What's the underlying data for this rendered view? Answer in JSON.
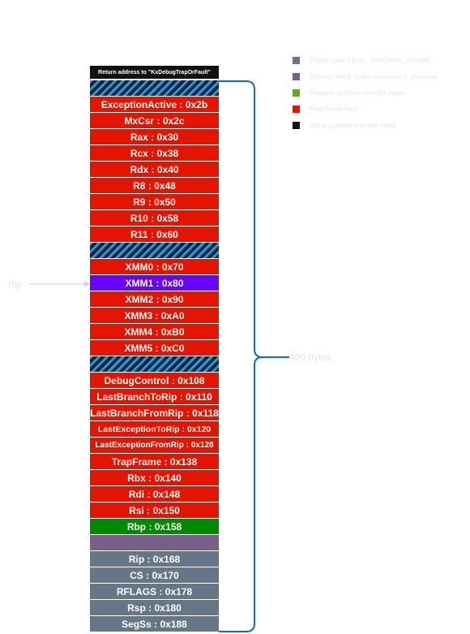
{
  "stack": [
    {
      "label": "Return address to \"KxDebugTrapOrFault\"",
      "kind": "val"
    },
    {
      "label": "",
      "kind": "pad"
    },
    {
      "label": "ExceptionActive : 0x2b",
      "kind": "trap"
    },
    {
      "label": "MxCsr : 0x2c",
      "kind": "trap"
    },
    {
      "label": "Rax : 0x30",
      "kind": "trap"
    },
    {
      "label": "Rcx : 0x38",
      "kind": "trap"
    },
    {
      "label": "Rdx : 0x40",
      "kind": "trap"
    },
    {
      "label": "R8 : 0x48",
      "kind": "trap"
    },
    {
      "label": "R9 : 0x50",
      "kind": "trap"
    },
    {
      "label": "R10 : 0x58",
      "kind": "trap"
    },
    {
      "label": "R11 : 0x60",
      "kind": "trap"
    },
    {
      "label": "",
      "kind": "pad"
    },
    {
      "label": "XMM0 : 0x70",
      "kind": "trap"
    },
    {
      "label": "XMM1 : 0x80",
      "kind": "rbp-highlight"
    },
    {
      "label": "XMM2 : 0x90",
      "kind": "trap"
    },
    {
      "label": "XMM3 : 0xA0",
      "kind": "trap"
    },
    {
      "label": "XMM4 : 0xB0",
      "kind": "trap"
    },
    {
      "label": "XMM5 : 0xC0",
      "kind": "trap"
    },
    {
      "label": "",
      "kind": "pad"
    },
    {
      "label": "DebugControl : 0x108",
      "kind": "trap"
    },
    {
      "label": "LastBranchToRip : 0x110",
      "kind": "trap"
    },
    {
      "label": "LastBranchFromRip : 0x118",
      "kind": "trap"
    },
    {
      "label": "LastExceptionToRip : 0x120",
      "kind": "trap",
      "size": "small"
    },
    {
      "label": "LastExceptionFromRip : 0x128",
      "kind": "trap",
      "size": "xsmall"
    },
    {
      "label": "TrapFrame : 0x138",
      "kind": "trap"
    },
    {
      "label": "Rbx : 0x140",
      "kind": "trap"
    },
    {
      "label": "Rdi : 0x148",
      "kind": "trap"
    },
    {
      "label": "Rsi : 0x150",
      "kind": "trap"
    },
    {
      "label": "Rbp : 0x158",
      "kind": "reg"
    },
    {
      "label": "",
      "kind": "dummy"
    },
    {
      "label": "Rip : 0x168",
      "kind": "mf"
    },
    {
      "label": "CS : 0x170",
      "kind": "mf"
    },
    {
      "label": "RFLAGS : 0x178",
      "kind": "mf"
    },
    {
      "label": "Rsp : 0x180",
      "kind": "mf"
    },
    {
      "label": "SegSs : 0x188",
      "kind": "mf"
    }
  ],
  "legend": [
    {
      "label": "Fields copied from _MACHINE_FRAME",
      "color": "#647687"
    },
    {
      "label": "Dummy stack space allocated in prologue",
      "color": "#76608a"
    },
    {
      "label": "Register pushed onto the stack",
      "color": "#60a917"
    },
    {
      "label": "Trap frame field",
      "color": "#e51400"
    },
    {
      "label": "Value pushed onto the stack",
      "color": "#111111"
    }
  ],
  "annotations": {
    "rbp_label": "rbp",
    "size_label": "400 bytes"
  },
  "colors": {
    "brace": "#10739e",
    "arrow": "#d0d0d0"
  }
}
